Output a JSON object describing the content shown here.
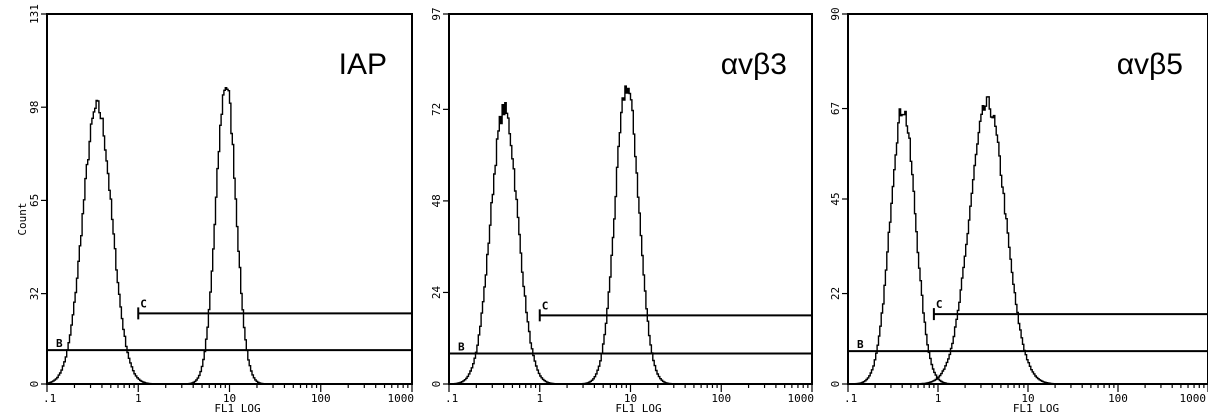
{
  "chart_data": [
    {
      "type": "line",
      "panel_label": "IAP",
      "xlabel": "FL1 LOG",
      "ylabel": "Count",
      "x_scale": "log",
      "xlim": [
        0.1,
        1000
      ],
      "ylim": [
        0,
        131
      ],
      "x_ticks": [
        0.1,
        1,
        10,
        100,
        1000
      ],
      "x_tick_labels": [
        ".1",
        "1",
        "10",
        "100",
        "1000"
      ],
      "y_ticks": [
        0,
        32,
        65,
        98,
        131
      ],
      "y_tick_labels": [
        "0",
        "32",
        "65",
        "98",
        "131"
      ],
      "gate_b": {
        "label": "B",
        "x_start": 0.1,
        "x_end": 1000,
        "y": 12
      },
      "gate_c": {
        "label": "C",
        "x_start": 1,
        "x_end": 1000,
        "y": 25
      },
      "series": [
        {
          "peaks": [
            {
              "center": 0.35,
              "height": 98,
              "width": 0.16
            }
          ],
          "floor": 12
        },
        {
          "peaks": [
            {
              "center": 9,
              "height": 106,
              "width": 0.11
            }
          ],
          "floor": 0
        }
      ]
    },
    {
      "type": "line",
      "panel_label": "αvβ3",
      "xlabel": "FL1 LOG",
      "ylabel": "",
      "x_scale": "log",
      "xlim": [
        0.1,
        1000
      ],
      "ylim": [
        0,
        97
      ],
      "x_ticks": [
        0.1,
        1,
        10,
        100,
        1000
      ],
      "x_tick_labels": [
        ".1",
        "1",
        "10",
        "100",
        "1000"
      ],
      "y_ticks": [
        0,
        24,
        48,
        72,
        97
      ],
      "y_tick_labels": [
        "0",
        "24",
        "48",
        "72",
        "97"
      ],
      "gate_b": {
        "label": "B",
        "x_start": 0.1,
        "x_end": 1000,
        "y": 8
      },
      "gate_c": {
        "label": "C",
        "x_start": 1,
        "x_end": 1000,
        "y": 18
      },
      "series": [
        {
          "peaks": [
            {
              "center": 0.4,
              "height": 72,
              "width": 0.15
            }
          ],
          "floor": 8
        },
        {
          "peaks": [
            {
              "center": 9,
              "height": 78,
              "width": 0.13
            }
          ],
          "floor": 0
        }
      ]
    },
    {
      "type": "line",
      "panel_label": "αvβ5",
      "xlabel": "FL1 LOG",
      "ylabel": "",
      "x_scale": "log",
      "xlim": [
        0.1,
        1000
      ],
      "ylim": [
        0,
        90
      ],
      "x_ticks": [
        0.1,
        1,
        10,
        100,
        1000
      ],
      "x_tick_labels": [
        ".1",
        "1",
        "10",
        "100",
        "1000"
      ],
      "y_ticks": [
        0,
        22,
        45,
        67,
        90
      ],
      "y_tick_labels": [
        "0",
        "22",
        "45",
        "67",
        "90"
      ],
      "gate_b": {
        "label": "B",
        "x_start": 0.1,
        "x_end": 1000,
        "y": 8
      },
      "gate_c": {
        "label": "C",
        "x_start": 0.9,
        "x_end": 1000,
        "y": 17
      },
      "series": [
        {
          "peaks": [
            {
              "center": 0.4,
              "height": 67,
              "width": 0.14
            }
          ],
          "floor": 8
        },
        {
          "peaks": [
            {
              "center": 3.5,
              "height": 68,
              "width": 0.2
            }
          ],
          "floor": 0
        }
      ]
    }
  ]
}
